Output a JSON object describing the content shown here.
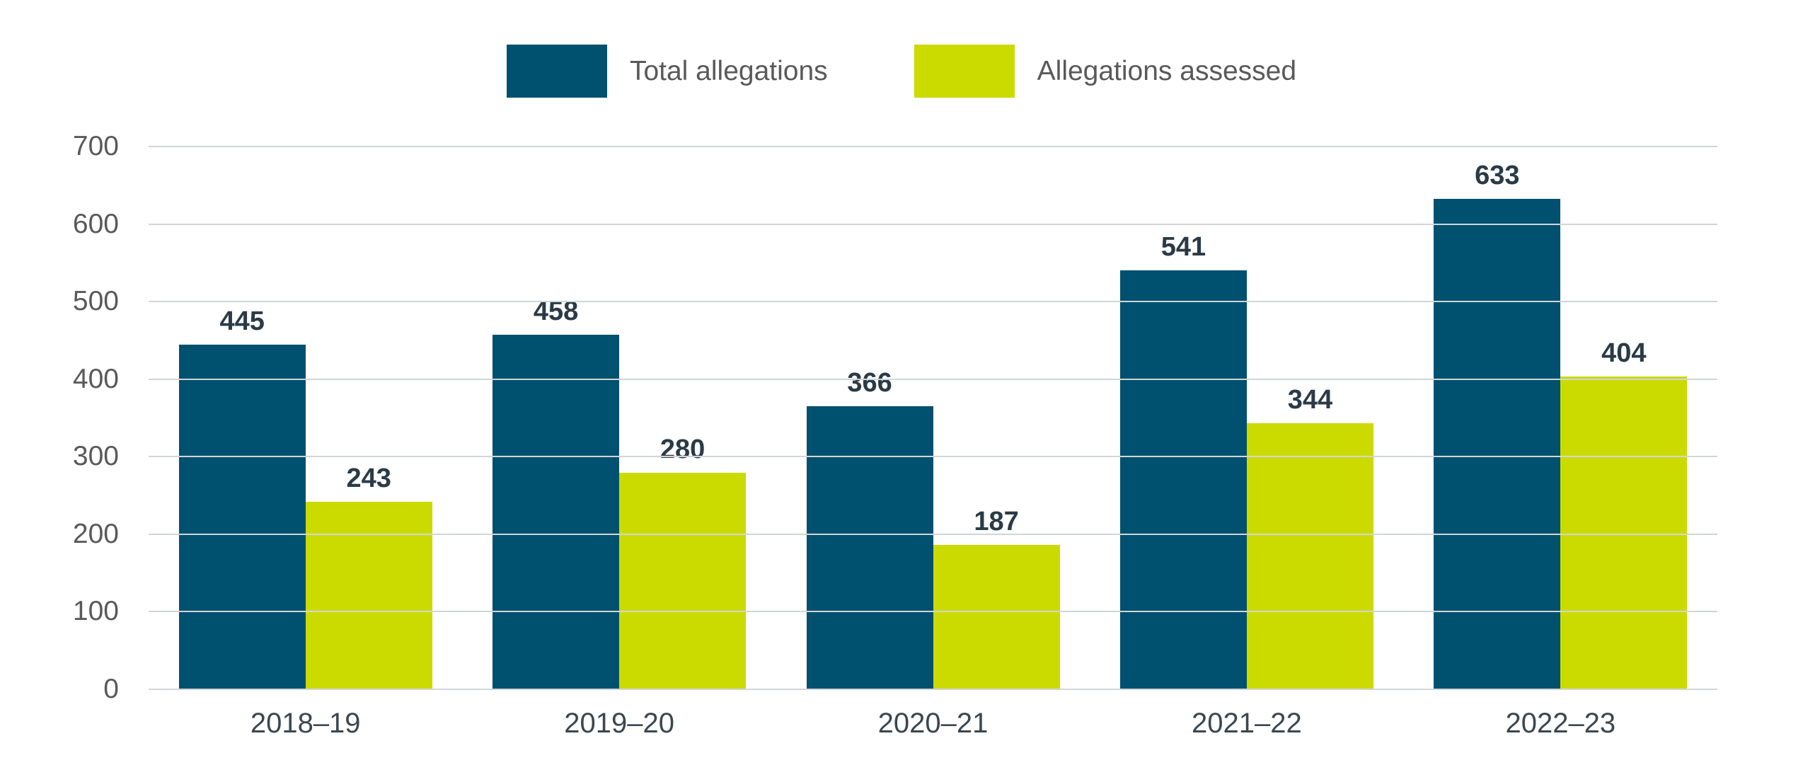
{
  "chart_data": {
    "type": "bar",
    "title": "",
    "categories": [
      "2018–19",
      "2019–20",
      "2020–21",
      "2021–22",
      "2022–23"
    ],
    "series": [
      {
        "name": "Total allegations",
        "color": "#00506F",
        "values": [
          445,
          458,
          366,
          541,
          633
        ]
      },
      {
        "name": "Allegations assessed",
        "color": "#CBDB00",
        "values": [
          243,
          280,
          187,
          344,
          404
        ]
      }
    ],
    "ylim": [
      0,
      700
    ],
    "ytick_step": 100,
    "grid": true,
    "legend_position": "top",
    "xlabel": "",
    "ylabel": ""
  },
  "colors": {
    "background": "#FFFFFF",
    "gridline": "#D2D5D8",
    "tick_label": "#595959",
    "category_label": "#3A4750",
    "value_label": "#2A3B47",
    "legend_text": "#595959"
  }
}
